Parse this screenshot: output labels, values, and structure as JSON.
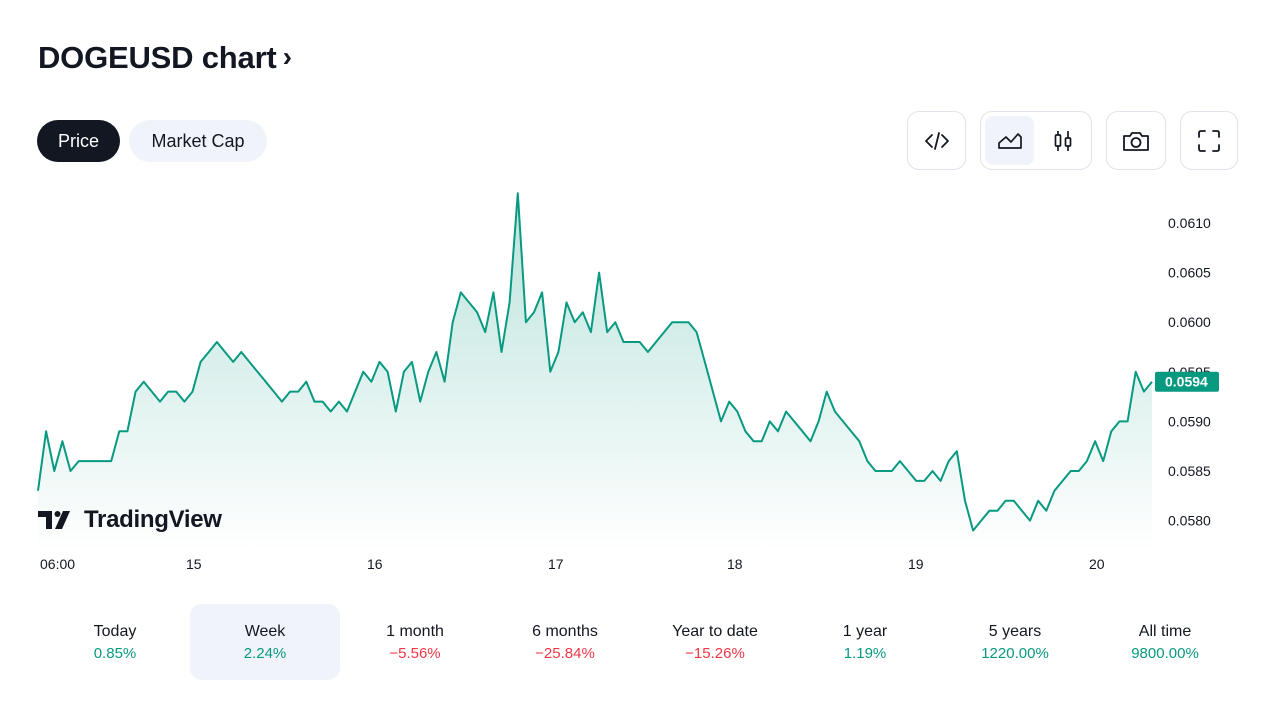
{
  "header": {
    "title": "DOGEUSD chart",
    "chevron": "›"
  },
  "tabs": [
    {
      "label": "Price",
      "active": true
    },
    {
      "label": "Market Cap",
      "active": false
    }
  ],
  "toolbar": {
    "embed_icon": "code-icon",
    "area_icon": "area-chart-icon",
    "candle_icon": "candlestick-icon",
    "camera_icon": "camera-icon",
    "fullscreen_icon": "fullscreen-icon"
  },
  "branding": {
    "logo_text": "TradingView"
  },
  "colors": {
    "line": "#089981",
    "positive": "#089981",
    "negative": "#f23645",
    "dark": "#131722",
    "pill_bg": "#f0f3fa"
  },
  "chart_data": {
    "type": "area",
    "x_ticks": [
      "06:00",
      "15",
      "16",
      "17",
      "18",
      "19",
      "20"
    ],
    "y_ticks": [
      "0.0610",
      "0.0605",
      "0.0600",
      "0.0595",
      "0.0590",
      "0.0585",
      "0.0580"
    ],
    "ylim": [
      0.0577,
      0.0613
    ],
    "last_value_label": "0.0594",
    "series": [
      {
        "values": [
          0.0583,
          0.0589,
          0.0585,
          0.0588,
          0.0585,
          0.0586,
          0.0586,
          0.0586,
          0.0586,
          0.0586,
          0.0589,
          0.0589,
          0.0593,
          0.0594,
          0.0593,
          0.0592,
          0.0593,
          0.0593,
          0.0592,
          0.0593,
          0.0596,
          0.0597,
          0.0598,
          0.0597,
          0.0596,
          0.0597,
          0.0596,
          0.0595,
          0.0594,
          0.0593,
          0.0592,
          0.0593,
          0.0593,
          0.0594,
          0.0592,
          0.0592,
          0.0591,
          0.0592,
          0.0591,
          0.0593,
          0.0595,
          0.0594,
          0.0596,
          0.0595,
          0.0591,
          0.0595,
          0.0596,
          0.0592,
          0.0595,
          0.0597,
          0.0594,
          0.06,
          0.0603,
          0.0602,
          0.0601,
          0.0599,
          0.0603,
          0.0597,
          0.0602,
          0.0613,
          0.06,
          0.0601,
          0.0603,
          0.0595,
          0.0597,
          0.0602,
          0.06,
          0.0601,
          0.0599,
          0.0605,
          0.0599,
          0.06,
          0.0598,
          0.0598,
          0.0598,
          0.0597,
          0.0598,
          0.0599,
          0.06,
          0.06,
          0.06,
          0.0599,
          0.0596,
          0.0593,
          0.059,
          0.0592,
          0.0591,
          0.0589,
          0.0588,
          0.0588,
          0.059,
          0.0589,
          0.0591,
          0.059,
          0.0589,
          0.0588,
          0.059,
          0.0593,
          0.0591,
          0.059,
          0.0589,
          0.0588,
          0.0586,
          0.0585,
          0.0585,
          0.0585,
          0.0586,
          0.0585,
          0.0584,
          0.0584,
          0.0585,
          0.0584,
          0.0586,
          0.0587,
          0.0582,
          0.0579,
          0.058,
          0.0581,
          0.0581,
          0.0582,
          0.0582,
          0.0581,
          0.058,
          0.0582,
          0.0581,
          0.0583,
          0.0584,
          0.0585,
          0.0585,
          0.0586,
          0.0588,
          0.0586,
          0.0589,
          0.059,
          0.059,
          0.0595,
          0.0593,
          0.0594
        ]
      }
    ]
  },
  "periods": [
    {
      "label": "Today",
      "value": "0.85%",
      "sign": "pos",
      "active": false
    },
    {
      "label": "Week",
      "value": "2.24%",
      "sign": "pos",
      "active": true
    },
    {
      "label": "1 month",
      "value": "−5.56%",
      "sign": "neg",
      "active": false
    },
    {
      "label": "6 months",
      "value": "−25.84%",
      "sign": "neg",
      "active": false
    },
    {
      "label": "Year to date",
      "value": "−15.26%",
      "sign": "neg",
      "active": false
    },
    {
      "label": "1 year",
      "value": "1.19%",
      "sign": "pos",
      "active": false
    },
    {
      "label": "5 years",
      "value": "1220.00%",
      "sign": "pos",
      "active": false
    },
    {
      "label": "All time",
      "value": "9800.00%",
      "sign": "pos",
      "active": false
    }
  ]
}
